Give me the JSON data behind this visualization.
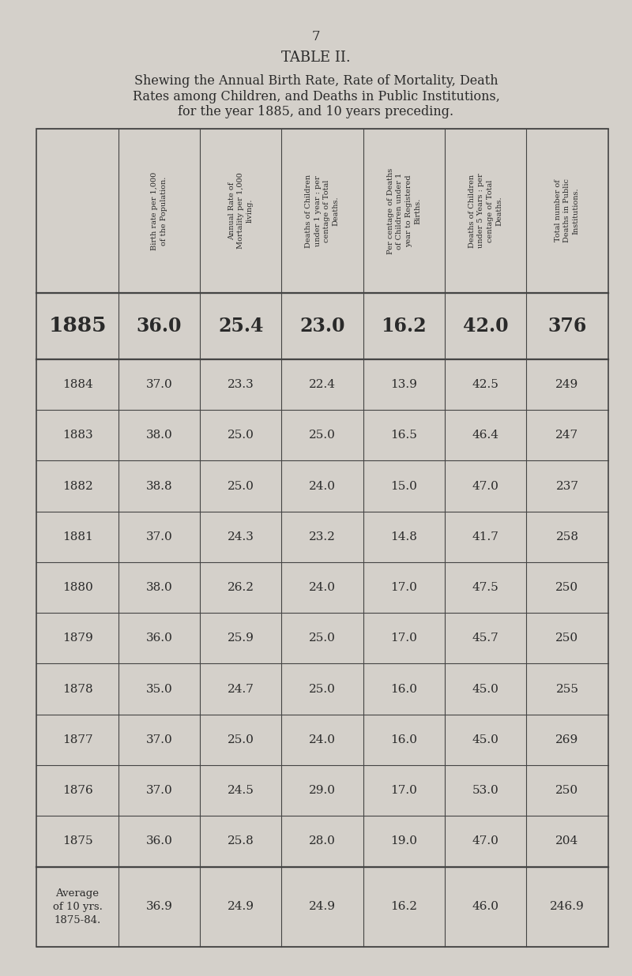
{
  "page_number": "7",
  "title": "TABLE II.",
  "subtitle_line1": "Shewing the Annual Birth Rate, Rate of Mortality, Death",
  "subtitle_line2": "Rates among Children, and Deaths in Public Institutions,",
  "subtitle_line3": "for the year 1885, and 10 years preceding.",
  "col_headers": [
    "Birth rate per 1,000\nof the Population.",
    "Annual Rate of\nMortality per 1,000\nliving.",
    "Deaths of Children\nunder 1 year : per\ncentage of Total\nDeaths.",
    "Per centage of Deaths\nof Children under 1\nyear to Registered\nBirths.",
    "Deaths of Children\nunder 5 Years : per\ncentage of Total\nDeaths.",
    "Total number of\nDeaths in Public\nInstitutions."
  ],
  "highlight_row": {
    "year": "1885",
    "values": [
      "36.0",
      "25.4",
      "23.0",
      "16.2",
      "42.0",
      "376"
    ]
  },
  "rows": [
    {
      "year": "1884",
      "values": [
        "37.0",
        "23.3",
        "22.4",
        "13.9",
        "42.5",
        "249"
      ]
    },
    {
      "year": "1883",
      "values": [
        "38.0",
        "25.0",
        "25.0",
        "16.5",
        "46.4",
        "247"
      ]
    },
    {
      "year": "1882",
      "values": [
        "38.8",
        "25.0",
        "24.0",
        "15.0",
        "47.0",
        "237"
      ]
    },
    {
      "year": "1881",
      "values": [
        "37.0",
        "24.3",
        "23.2",
        "14.8",
        "41.7",
        "258"
      ]
    },
    {
      "year": "1880",
      "values": [
        "38.0",
        "26.2",
        "24.0",
        "17.0",
        "47.5",
        "250"
      ]
    },
    {
      "year": "1879",
      "values": [
        "36.0",
        "25.9",
        "25.0",
        "17.0",
        "45.7",
        "250"
      ]
    },
    {
      "year": "1878",
      "values": [
        "35.0",
        "24.7",
        "25.0",
        "16.0",
        "45.0",
        "255"
      ]
    },
    {
      "year": "1877",
      "values": [
        "37.0",
        "25.0",
        "24.0",
        "16.0",
        "45.0",
        "269"
      ]
    },
    {
      "year": "1876",
      "values": [
        "37.0",
        "24.5",
        "29.0",
        "17.0",
        "53.0",
        "250"
      ]
    },
    {
      "year": "1875",
      "values": [
        "36.0",
        "25.8",
        "28.0",
        "19.0",
        "47.0",
        "204"
      ]
    }
  ],
  "average_row": {
    "year": "Average\nof 10 yrs.\n1875-84.",
    "values": [
      "36.9",
      "24.9",
      "24.9",
      "16.2",
      "46.0",
      "246.9"
    ]
  },
  "bg_color": "#d4d0ca",
  "text_color": "#2a2a2a",
  "line_color": "#444444"
}
